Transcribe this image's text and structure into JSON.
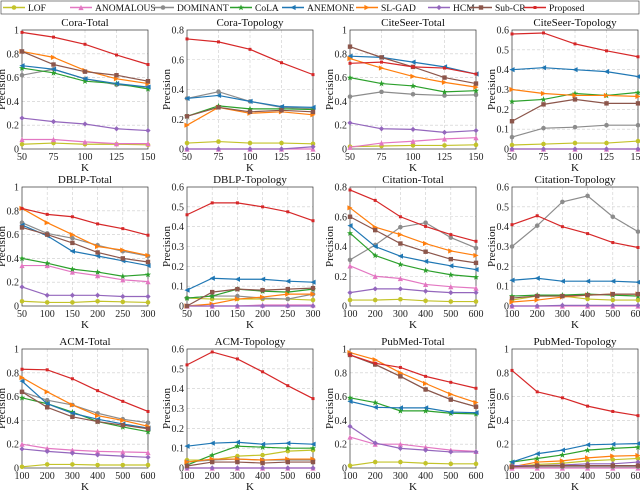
{
  "chart_data": {
    "type": "line",
    "grid": true,
    "legend": {
      "placement": "top",
      "entries": [
        "LOF",
        "ANOMALOUS",
        "DOMINANT",
        "CoLA",
        "ANEMONE",
        "SL-GAD",
        "HCM",
        "Sub-CR",
        "Proposed"
      ]
    },
    "series_colors": [
      "#c3c32a",
      "#e377c2",
      "#8c8c8c",
      "#2ca02c",
      "#1f77b4",
      "#ff7f0e",
      "#9467bd",
      "#8c564b",
      "#d62728"
    ],
    "series_markers": [
      "circle",
      "triangle",
      "circle",
      "star",
      "left-triangle",
      "right-triangle",
      "diamond",
      "square",
      "small-square"
    ],
    "panels": [
      {
        "title": "Cora-Total",
        "xlabel": "K",
        "ylabel": "Precision",
        "x": [
          50,
          75,
          100,
          125,
          150
        ],
        "ylim": [
          0,
          1
        ],
        "yticks": [
          0,
          0.2,
          0.4,
          0.6,
          0.8,
          1
        ],
        "series": [
          [
            0.04,
            0.05,
            0.04,
            0.04,
            0.035
          ],
          [
            0.08,
            0.08,
            0.06,
            0.045,
            0.045
          ],
          [
            0.62,
            0.67,
            0.59,
            0.54,
            0.52
          ],
          [
            0.68,
            0.64,
            0.57,
            0.55,
            0.505
          ],
          [
            0.7,
            0.67,
            0.59,
            0.55,
            0.52
          ],
          [
            0.82,
            0.77,
            0.66,
            0.59,
            0.55
          ],
          [
            0.26,
            0.23,
            0.21,
            0.17,
            0.155
          ],
          [
            0.82,
            0.71,
            0.65,
            0.62,
            0.57
          ],
          [
            0.98,
            0.94,
            0.88,
            0.79,
            0.71
          ]
        ]
      },
      {
        "title": "Cora-Topology",
        "xlabel": "K",
        "ylabel": "Precision",
        "x": [
          50,
          75,
          100,
          125,
          150
        ],
        "ylim": [
          0,
          0.8
        ],
        "yticks": [
          0,
          0.2,
          0.4,
          0.6,
          0.8
        ],
        "series": [
          [
            0.04,
            0.05,
            0.04,
            0.04,
            0.035
          ],
          [
            0,
            0,
            0,
            0,
            0
          ],
          [
            0.34,
            0.385,
            0.32,
            0.28,
            0.27
          ],
          [
            0.22,
            0.29,
            0.27,
            0.27,
            0.265
          ],
          [
            0.34,
            0.36,
            0.32,
            0.285,
            0.28
          ],
          [
            0.16,
            0.28,
            0.24,
            0.25,
            0.23
          ],
          [
            0,
            0,
            0,
            0,
            0.015
          ],
          [
            0.22,
            0.28,
            0.25,
            0.26,
            0.25
          ],
          [
            0.74,
            0.72,
            0.67,
            0.58,
            0.5
          ]
        ]
      },
      {
        "title": "CiteSeer-Total",
        "xlabel": "K",
        "ylabel": "Precision",
        "x": [
          50,
          75,
          100,
          125,
          150
        ],
        "ylim": [
          0,
          1
        ],
        "yticks": [
          0,
          0.2,
          0.4,
          0.6,
          0.8,
          1
        ],
        "series": [
          [
            0.02,
            0.025,
            0.03,
            0.03,
            0.035
          ],
          [
            0.015,
            0.05,
            0.065,
            0.085,
            0.095
          ],
          [
            0.44,
            0.48,
            0.46,
            0.45,
            0.455
          ],
          [
            0.6,
            0.55,
            0.53,
            0.48,
            0.49
          ],
          [
            0.78,
            0.77,
            0.73,
            0.69,
            0.63
          ],
          [
            0.76,
            0.68,
            0.61,
            0.56,
            0.52
          ],
          [
            0.22,
            0.17,
            0.165,
            0.14,
            0.155
          ],
          [
            0.86,
            0.77,
            0.69,
            0.6,
            0.55
          ],
          [
            0.72,
            0.73,
            0.69,
            0.68,
            0.63
          ]
        ]
      },
      {
        "title": "CiteSeer-Topology",
        "xlabel": "K",
        "ylabel": "Precision",
        "x": [
          50,
          75,
          100,
          125,
          150
        ],
        "ylim": [
          0,
          0.6
        ],
        "yticks": [
          0,
          0.1,
          0.2,
          0.3,
          0.4,
          0.5,
          0.6
        ],
        "series": [
          [
            0.02,
            0.025,
            0.03,
            0.03,
            0.04
          ],
          [
            0,
            0,
            0,
            0,
            0
          ],
          [
            0.06,
            0.105,
            0.11,
            0.12,
            0.12
          ],
          [
            0.24,
            0.25,
            0.28,
            0.27,
            0.285
          ],
          [
            0.4,
            0.41,
            0.4,
            0.39,
            0.365
          ],
          [
            0.3,
            0.28,
            0.27,
            0.27,
            0.265
          ],
          [
            0,
            0,
            0,
            0,
            0
          ],
          [
            0.14,
            0.225,
            0.25,
            0.23,
            0.23
          ],
          [
            0.58,
            0.585,
            0.53,
            0.495,
            0.465
          ]
        ]
      },
      {
        "title": "DBLP-Total",
        "xlabel": "K",
        "ylabel": "Precision",
        "x": [
          50,
          100,
          150,
          200,
          250,
          300
        ],
        "ylim": [
          0,
          1
        ],
        "yticks": [
          0,
          0.2,
          0.4,
          0.6,
          0.8,
          1
        ],
        "series": [
          [
            0.04,
            0.03,
            0.03,
            0.04,
            0.035,
            0.03
          ],
          [
            0.34,
            0.34,
            0.285,
            0.255,
            0.22,
            0.205
          ],
          [
            0.7,
            0.61,
            0.57,
            0.51,
            0.46,
            0.42
          ],
          [
            0.4,
            0.36,
            0.31,
            0.285,
            0.25,
            0.265
          ],
          [
            0.68,
            0.59,
            0.46,
            0.42,
            0.38,
            0.34
          ],
          [
            0.82,
            0.7,
            0.6,
            0.5,
            0.47,
            0.425
          ],
          [
            0.16,
            0.09,
            0.09,
            0.09,
            0.08,
            0.08
          ],
          [
            0.66,
            0.6,
            0.53,
            0.45,
            0.4,
            0.37
          ],
          [
            0.82,
            0.77,
            0.75,
            0.69,
            0.65,
            0.595
          ]
        ]
      },
      {
        "title": "DBLP-Topology",
        "xlabel": "K",
        "ylabel": "Precision",
        "x": [
          50,
          100,
          150,
          200,
          250,
          300
        ],
        "ylim": [
          0,
          0.6
        ],
        "yticks": [
          0,
          0.1,
          0.2,
          0.3,
          0.4,
          0.5,
          0.6
        ],
        "series": [
          [
            0.04,
            0.035,
            0.035,
            0.035,
            0.035,
            0.03
          ],
          [
            0,
            0,
            0,
            0.005,
            0.005,
            0.005
          ],
          [
            0.04,
            0.05,
            0.05,
            0.04,
            0.035,
            0.06
          ],
          [
            0.04,
            0.05,
            0.085,
            0.075,
            0.07,
            0.085
          ],
          [
            0.08,
            0.14,
            0.135,
            0.135,
            0.125,
            0.12
          ],
          [
            0,
            0.01,
            0.035,
            0.045,
            0.06,
            0.06
          ],
          [
            0,
            0,
            0,
            0,
            0,
            0
          ],
          [
            0,
            0.07,
            0.085,
            0.08,
            0.085,
            0.09
          ],
          [
            0.46,
            0.52,
            0.52,
            0.5,
            0.475,
            0.43
          ]
        ]
      },
      {
        "title": "Citation-Total",
        "xlabel": "K",
        "ylabel": "Precision",
        "x": [
          100,
          200,
          300,
          400,
          500,
          600
        ],
        "ylim": [
          0,
          0.8
        ],
        "yticks": [
          0,
          0.2,
          0.4,
          0.6,
          0.8
        ],
        "series": [
          [
            0.04,
            0.04,
            0.045,
            0.035,
            0.03,
            0.03
          ],
          [
            0.27,
            0.2,
            0.185,
            0.145,
            0.13,
            0.12
          ],
          [
            0.31,
            0.41,
            0.53,
            0.56,
            0.46,
            0.39
          ],
          [
            0.49,
            0.34,
            0.28,
            0.24,
            0.21,
            0.195
          ],
          [
            0.54,
            0.4,
            0.335,
            0.3,
            0.27,
            0.245
          ],
          [
            0.66,
            0.53,
            0.48,
            0.42,
            0.37,
            0.34
          ],
          [
            0.09,
            0.115,
            0.115,
            0.1,
            0.09,
            0.09
          ],
          [
            0.6,
            0.51,
            0.42,
            0.365,
            0.315,
            0.29
          ],
          [
            0.78,
            0.71,
            0.6,
            0.535,
            0.48,
            0.435
          ]
        ]
      },
      {
        "title": "Citation-Topology",
        "xlabel": "K",
        "ylabel": "Precision",
        "x": [
          100,
          200,
          300,
          400,
          500,
          600
        ],
        "ylim": [
          0,
          0.6
        ],
        "yticks": [
          0,
          0.1,
          0.2,
          0.3,
          0.4,
          0.5,
          0.6
        ],
        "series": [
          [
            0.03,
            0.05,
            0.05,
            0.035,
            0.03,
            0.03
          ],
          [
            0,
            0,
            0,
            0,
            0,
            0
          ],
          [
            0.3,
            0.405,
            0.525,
            0.555,
            0.45,
            0.375
          ],
          [
            0.05,
            0.055,
            0.055,
            0.06,
            0.055,
            0.05
          ],
          [
            0.13,
            0.14,
            0.125,
            0.125,
            0.125,
            0.12
          ],
          [
            0.02,
            0.03,
            0.045,
            0.055,
            0.06,
            0.06
          ],
          [
            0,
            0,
            0.003,
            0.003,
            0.003,
            0.003
          ],
          [
            0.04,
            0.05,
            0.05,
            0.055,
            0.06,
            0.06
          ],
          [
            0.41,
            0.455,
            0.4,
            0.365,
            0.32,
            0.295
          ]
        ]
      },
      {
        "title": "ACM-Total",
        "xlabel": "K",
        "ylabel": "Precision",
        "x": [
          100,
          200,
          300,
          400,
          500,
          600
        ],
        "ylim": [
          0,
          1
        ],
        "yticks": [
          0,
          0.2,
          0.4,
          0.6,
          0.8,
          1
        ],
        "series": [
          [
            0.01,
            0.03,
            0.03,
            0.025,
            0.025,
            0.025
          ],
          [
            0.2,
            0.165,
            0.15,
            0.14,
            0.135,
            0.13
          ],
          [
            0.64,
            0.57,
            0.53,
            0.46,
            0.41,
            0.38
          ],
          [
            0.59,
            0.54,
            0.47,
            0.39,
            0.345,
            0.305
          ],
          [
            0.73,
            0.54,
            0.46,
            0.41,
            0.37,
            0.335
          ],
          [
            0.76,
            0.64,
            0.53,
            0.44,
            0.4,
            0.35
          ],
          [
            0.16,
            0.14,
            0.125,
            0.11,
            0.1,
            0.09
          ],
          [
            0.64,
            0.51,
            0.43,
            0.39,
            0.36,
            0.33
          ],
          [
            0.83,
            0.825,
            0.75,
            0.65,
            0.56,
            0.475
          ]
        ]
      },
      {
        "title": "ACM-Topology",
        "xlabel": "K",
        "ylabel": "Precision",
        "x": [
          100,
          200,
          300,
          400,
          500,
          600
        ],
        "ylim": [
          0,
          0.6
        ],
        "yticks": [
          0,
          0.1,
          0.2,
          0.3,
          0.4,
          0.5,
          0.6
        ],
        "series": [
          [
            0.04,
            0.04,
            0.06,
            0.065,
            0.085,
            0.09
          ],
          [
            0,
            0,
            0,
            0,
            0,
            0
          ],
          [
            0.03,
            0.04,
            0.045,
            0.04,
            0.04,
            0.04
          ],
          [
            0.015,
            0.065,
            0.11,
            0.105,
            0.1,
            0.1
          ],
          [
            0.11,
            0.125,
            0.13,
            0.12,
            0.125,
            0.12
          ],
          [
            0.03,
            0.045,
            0.045,
            0.04,
            0.045,
            0.045
          ],
          [
            0,
            0,
            0,
            0,
            0,
            0
          ],
          [
            0.01,
            0.03,
            0.03,
            0.025,
            0.03,
            0.03
          ],
          [
            0.52,
            0.585,
            0.55,
            0.485,
            0.415,
            0.35
          ]
        ]
      },
      {
        "title": "PubMed-Total",
        "xlabel": "K",
        "ylabel": "Precision",
        "x": [
          100,
          200,
          300,
          400,
          500,
          600
        ],
        "ylim": [
          0,
          1
        ],
        "yticks": [
          0,
          0.2,
          0.4,
          0.6,
          0.8,
          1
        ],
        "series": [
          [
            0.02,
            0.05,
            0.05,
            0.04,
            0.035,
            0.035
          ],
          [
            0.26,
            0.2,
            0.2,
            0.175,
            0.15,
            0.14
          ],
          [
            0.95,
            0.87,
            0.77,
            0.66,
            0.575,
            0.515
          ],
          [
            0.59,
            0.55,
            0.48,
            0.48,
            0.46,
            0.455
          ],
          [
            0.56,
            0.51,
            0.505,
            0.505,
            0.47,
            0.465
          ],
          [
            0.97,
            0.91,
            0.8,
            0.71,
            0.62,
            0.55
          ],
          [
            0.35,
            0.21,
            0.165,
            0.15,
            0.135,
            0.135
          ],
          [
            0.95,
            0.87,
            0.77,
            0.66,
            0.575,
            0.515
          ],
          [
            0.95,
            0.88,
            0.845,
            0.77,
            0.72,
            0.67
          ]
        ]
      },
      {
        "title": "PubMed-Topology",
        "xlabel": "K",
        "ylabel": "Precision",
        "x": [
          100,
          200,
          300,
          400,
          500,
          600
        ],
        "ylim": [
          0,
          1
        ],
        "yticks": [
          0,
          0.2,
          0.4,
          0.6,
          0.8,
          1
        ],
        "series": [
          [
            0.01,
            0.03,
            0.04,
            0.06,
            0.07,
            0.08
          ],
          [
            0,
            0,
            0,
            0,
            0,
            0
          ],
          [
            0.01,
            0.01,
            0.01,
            0.01,
            0.01,
            0.01
          ],
          [
            0.05,
            0.08,
            0.11,
            0.15,
            0.165,
            0.175
          ],
          [
            0.05,
            0.12,
            0.15,
            0.195,
            0.2,
            0.205
          ],
          [
            0.01,
            0.05,
            0.06,
            0.085,
            0.1,
            0.105
          ],
          [
            0.02,
            0.02,
            0.025,
            0.035,
            0.035,
            0.05
          ],
          [
            0.01,
            0.02,
            0.02,
            0.02,
            0.02,
            0.02
          ],
          [
            0.82,
            0.64,
            0.59,
            0.52,
            0.475,
            0.44
          ]
        ]
      }
    ]
  }
}
